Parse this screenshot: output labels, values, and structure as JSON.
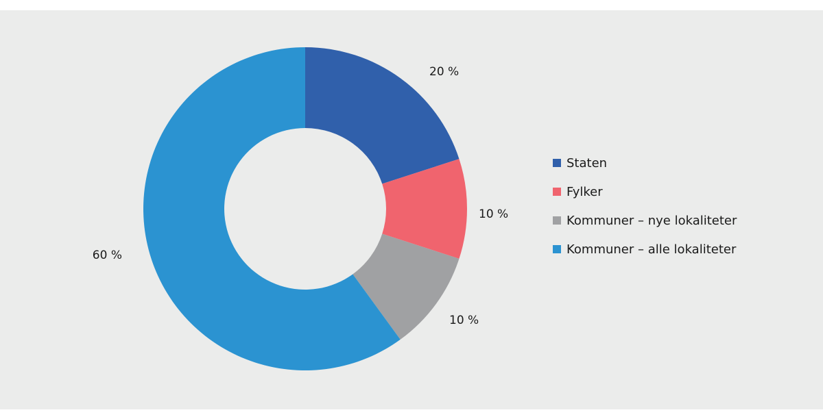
{
  "chart_data": {
    "type": "pie",
    "donut": true,
    "categories": [
      "Staten",
      "Fylker",
      "Kommuner – nye lokaliteter",
      "Kommuner – alle lokaliteter"
    ],
    "values": [
      20,
      10,
      10,
      60
    ],
    "value_labels": [
      "20 %",
      "10 %",
      "10 %",
      "60 %"
    ],
    "colors": [
      "#3060ab",
      "#f0646e",
      "#a0a1a3",
      "#2b93d1"
    ],
    "legend_position": "right",
    "title": ""
  },
  "background_color": "#ebeceb"
}
